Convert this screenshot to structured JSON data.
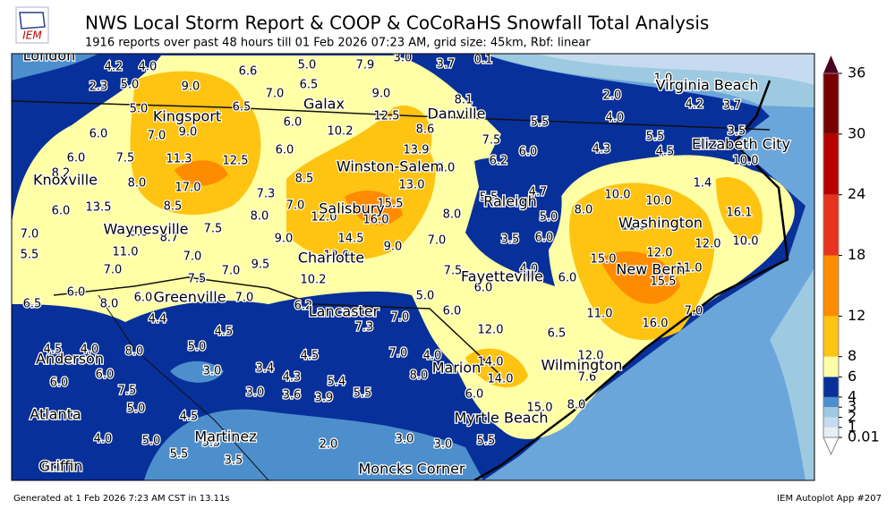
{
  "header": {
    "logo": "IEM",
    "title": "NWS Local Storm Report & COOP & CoCoRaHS Snowfall Total Analysis",
    "subtitle": "1916 reports over past 48 hours till 01 Feb 2026 07:23 AM, grid size: 45km, Rbf: linear"
  },
  "map": {
    "cities": [
      "London",
      "Kingsport",
      "Galax",
      "Danville",
      "Virginia Beach",
      "Knoxville",
      "Winston-Salem",
      "Elizabeth City",
      "Salisbury",
      "Raleigh",
      "Waynesville",
      "Washington",
      "Charlotte",
      "New Bern",
      "Greenville",
      "Fayetteville",
      "Lancaster",
      "Anderson",
      "Marion",
      "Wilmington",
      "Atlanta",
      "Myrtle Beach",
      "Martinez",
      "Moncks Corner",
      "Griffin"
    ],
    "station_values": [
      "4.2",
      "4.0",
      "2.3",
      "5.0",
      "9.0",
      "6.6",
      "7.0",
      "5.0",
      "6.5",
      "7.9",
      "3.0",
      "3.7",
      "0.1",
      "9.0",
      "12.5",
      "8.1",
      "5.0",
      "6.5",
      "6.0",
      "10.2",
      "8.6",
      "5.5",
      "2.0",
      "1.0",
      "4.0",
      "4.2",
      "3.7",
      "5.5",
      "3.5",
      "6.0",
      "7.0",
      "9.0",
      "13.9",
      "7.5",
      "6.0",
      "4.3",
      "4.5",
      "10.0",
      "6.0",
      "7.5",
      "11.3",
      "12.5",
      "6.0",
      "7.0",
      "6.2",
      "8.2",
      "8.0",
      "17.0",
      "8.5",
      "13.0",
      "1.4",
      "13.5",
      "8.5",
      "7.3",
      "7.0",
      "5.5",
      "4.7",
      "10.0",
      "10.0",
      "6.0",
      "12.0",
      "16.0",
      "15.5",
      "8.0",
      "5.0",
      "8.0",
      "16.1",
      "8.8",
      "8.7",
      "7.5",
      "8.0",
      "9.0",
      "14.5",
      "9.0",
      "7.0",
      "3.5",
      "6.0",
      "11.5",
      "12.0",
      "10.0",
      "7.0",
      "11.0",
      "7.0",
      "12.0",
      "15.0",
      "12.0",
      "11.0",
      "5.5",
      "7.0",
      "9.5",
      "7.0",
      "7.5",
      "10.2",
      "7.5",
      "4.0",
      "6.0",
      "15.5",
      "6.0",
      "6.0",
      "7.0",
      "6.0",
      "5.0",
      "6.5",
      "8.0",
      "6.2",
      "4.4",
      "6.0",
      "7.0",
      "11.0",
      "7.0",
      "16.0",
      "7.3",
      "12.0",
      "6.5",
      "5.0",
      "4.5",
      "4.5",
      "4.0",
      "4.5",
      "4.0",
      "12.0",
      "8.0",
      "3.0",
      "3.4",
      "7.0",
      "14.0",
      "6.0",
      "4.3",
      "5.4",
      "8.0",
      "14.0",
      "7.6",
      "6.0",
      "7.5",
      "3.0",
      "3.6",
      "3.9",
      "5.5",
      "6.0",
      "5.0",
      "4.5",
      "15.0",
      "8.0",
      "4.0",
      "5.0",
      "5.5",
      "2.0",
      "3.0",
      "3.0",
      "5.5",
      "5.5",
      "3.5",
      "0.1"
    ]
  },
  "colorbar": {
    "levels": [
      0.01,
      1,
      2,
      3,
      4,
      6,
      8,
      12,
      18,
      24,
      30,
      36
    ],
    "colors": [
      "#e6eef6",
      "#c6dbef",
      "#9ecae1",
      "#4d8fcc",
      "#08309a",
      "#ffffa6",
      "#ffc312",
      "#ff8c00",
      "#e8341c",
      "#b80000",
      "#780000"
    ]
  },
  "footer": {
    "left": "Generated at 1 Feb 2026 7:23 AM CST in 13.11s",
    "right": "IEM Autoplot App #207"
  }
}
